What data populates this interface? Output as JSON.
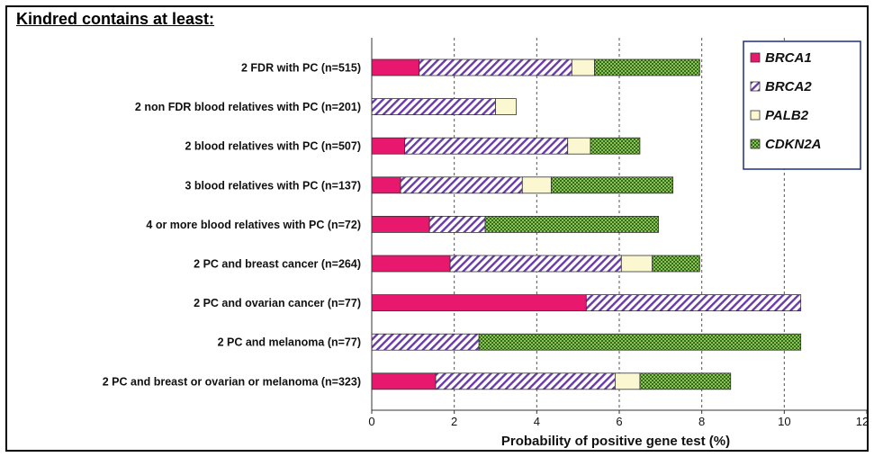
{
  "page_title": "Kindred contains at least:",
  "chart_data": {
    "type": "bar",
    "orientation": "horizontal",
    "stacked": true,
    "title": "",
    "xlabel": "Probability of positive gene test (%)",
    "ylabel": "",
    "xlim": [
      0,
      12
    ],
    "xticks": [
      0,
      2,
      4,
      6,
      8,
      10,
      12
    ],
    "grid": "vertical-dashed",
    "legend": "top-right",
    "categories": [
      "2 FDR with PC (n=515)",
      "2 non FDR blood relatives with PC (n=201)",
      "2 blood relatives with PC (n=507)",
      "3 blood relatives with PC (n=137)",
      "4 or more blood relatives with PC (n=72)",
      "2 PC and breast cancer (n=264)",
      "2 PC and ovarian cancer (n=77)",
      "2 PC and melanoma (n=77)",
      "2 PC and breast or ovarian or melanoma (n=323)"
    ],
    "series": [
      {
        "name": "BRCA1",
        "color": "#e8186e",
        "pattern": "solid",
        "values": [
          1.15,
          0,
          0.8,
          0.7,
          1.4,
          1.9,
          5.2,
          0,
          1.55
        ]
      },
      {
        "name": "BRCA2",
        "color": "#6a3aa8",
        "pattern": "diagonal-hatch",
        "values": [
          3.7,
          3.0,
          3.95,
          2.95,
          1.35,
          4.15,
          5.2,
          2.6,
          4.35
        ]
      },
      {
        "name": "PALB2",
        "color": "#fbf7d0",
        "pattern": "solid",
        "values": [
          0.55,
          0.5,
          0.55,
          0.7,
          0,
          0.75,
          0,
          0,
          0.6
        ]
      },
      {
        "name": "CDKN2A",
        "color": "#3f7f22",
        "pattern": "checker",
        "values": [
          2.55,
          0,
          1.2,
          2.95,
          4.2,
          1.15,
          0,
          7.8,
          2.2
        ]
      }
    ]
  }
}
